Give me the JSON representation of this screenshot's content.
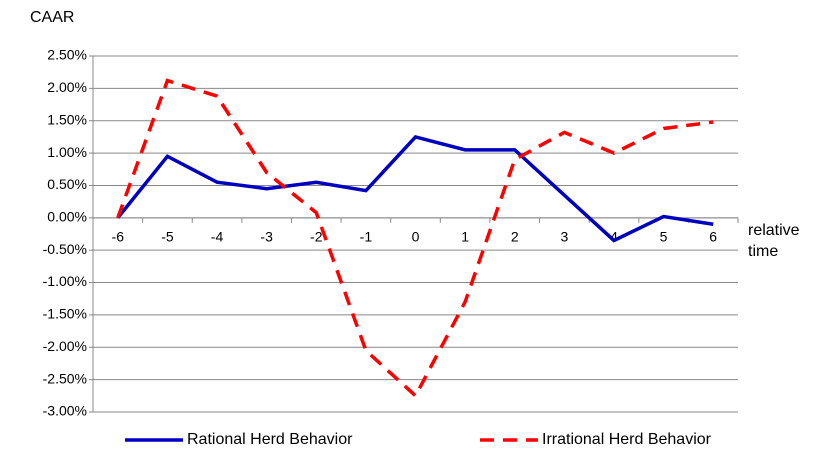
{
  "chart_data": {
    "type": "line",
    "y_label": "CAAR",
    "x_label": "relative time",
    "categories": [
      "-6",
      "-5",
      "-4",
      "-3",
      "-2",
      "-1",
      "0",
      "1",
      "2",
      "3",
      "4",
      "5",
      "6"
    ],
    "series": [
      {
        "name": "Rational Herd Behavior",
        "color": "#0000c0",
        "dash": "solid",
        "values": [
          0,
          0.95,
          0.55,
          0.45,
          0.55,
          0.42,
          1.25,
          1.05,
          1.05,
          0.35,
          -0.35,
          0.02,
          -0.1
        ]
      },
      {
        "name": "Irrational Herd Behavior",
        "color": "#ff0000",
        "dash": "dashed",
        "values": [
          0,
          2.12,
          1.88,
          0.7,
          0.08,
          -2.05,
          -2.75,
          -1.3,
          0.9,
          1.32,
          1.0,
          1.38,
          1.48
        ]
      }
    ],
    "ylim": [
      -3,
      2.5
    ],
    "yticks": [
      {
        "value": 2.5,
        "label": "2.50%"
      },
      {
        "value": 2,
        "label": "2.00%"
      },
      {
        "value": 1.5,
        "label": "1.50%"
      },
      {
        "value": 1,
        "label": "1.00%"
      },
      {
        "value": 0.5,
        "label": "0.50%"
      },
      {
        "value": 0,
        "label": "0.00%"
      },
      {
        "value": -0.5,
        "label": "-0.50%"
      },
      {
        "value": -1,
        "label": "-1.00%"
      },
      {
        "value": -1.5,
        "label": "-1.50%"
      },
      {
        "value": -2,
        "label": "-2.00%"
      },
      {
        "value": -2.5,
        "label": "-2.50%"
      },
      {
        "value": -3,
        "label": "-3.00%"
      }
    ],
    "grid": true
  }
}
